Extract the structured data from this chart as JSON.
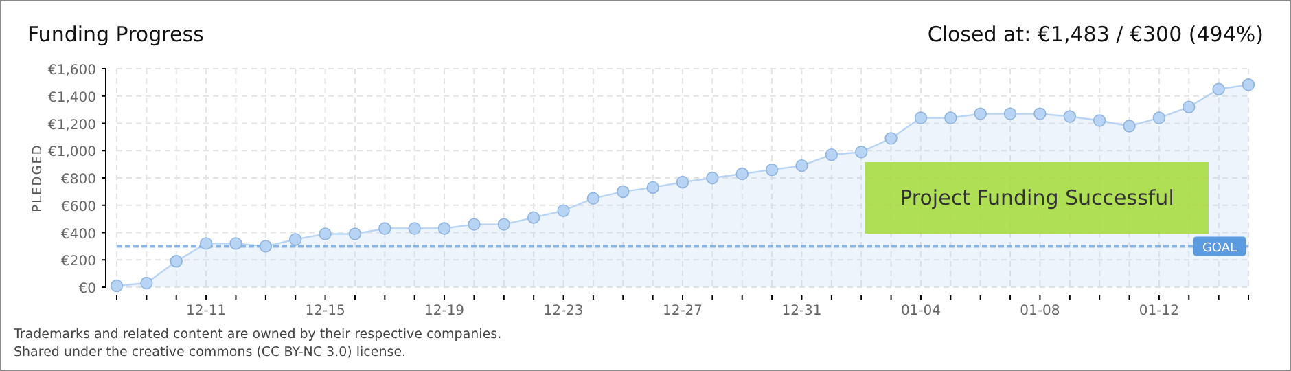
{
  "chart_data": {
    "type": "area",
    "title": "Funding Progress",
    "subtitle": "Closed at:  €1,483 /  €300 (494%)",
    "ylabel": "PLEDGED",
    "categories": [
      null,
      null,
      null,
      "12-11",
      null,
      null,
      null,
      "12-15",
      null,
      null,
      null,
      "12-19",
      null,
      null,
      null,
      "12-23",
      null,
      null,
      null,
      "12-27",
      null,
      null,
      null,
      "12-31",
      null,
      null,
      null,
      "01-04",
      null,
      null,
      null,
      "01-08",
      null,
      null,
      null,
      "01-12",
      null,
      null,
      null
    ],
    "series": [
      {
        "color": "#b8d4f4",
        "values": [
          10,
          30,
          190,
          320,
          320,
          300,
          350,
          390,
          390,
          430,
          430,
          430,
          460,
          460,
          510,
          560,
          650,
          700,
          730,
          770,
          800,
          830,
          860,
          890,
          970,
          990,
          1090,
          1240,
          1240,
          1270,
          1270,
          1270,
          1250,
          1220,
          1180,
          1240,
          1320,
          1450,
          1483
        ]
      }
    ],
    "ylim": [
      0,
      1600
    ],
    "yticks": [
      {
        "value": 0,
        "label": "€0"
      },
      {
        "value": 200,
        "label": "€200"
      },
      {
        "value": 400,
        "label": "€400"
      },
      {
        "value": 600,
        "label": "€600"
      },
      {
        "value": 800,
        "label": "€800"
      },
      {
        "value": 1000,
        "label": "€1,000"
      },
      {
        "value": 1200,
        "label": "€1,200"
      },
      {
        "value": 1400,
        "label": "€1,400"
      },
      {
        "value": 1600,
        "label": "€1,600"
      }
    ],
    "ref_lines": [
      {
        "axis": "y",
        "value": 300,
        "label": "GOAL",
        "color": "#5b9be0",
        "line_style": "dashed"
      }
    ],
    "grid": true,
    "legend": false,
    "marker": "circle",
    "annotations": [
      "Project Funding Successful",
      "Trademarks and related content are owned by their respective companies.",
      "Shared under the creative commons (CC BY-NC 3.0) license."
    ]
  }
}
